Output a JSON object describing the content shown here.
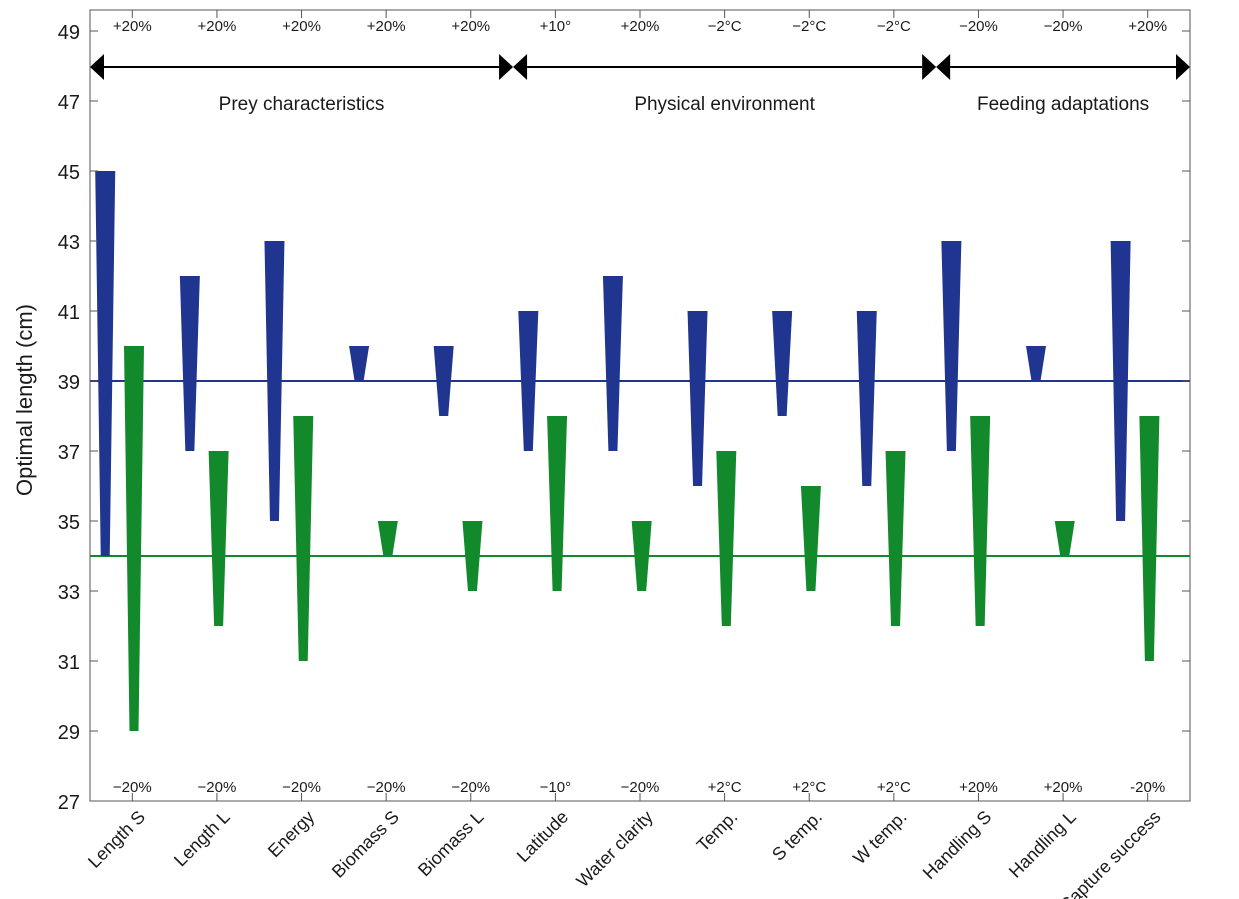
{
  "chart_data": {
    "type": "bar",
    "ylabel": "Optimal length (cm)",
    "ylim": [
      27,
      49.6
    ],
    "yticks": [
      "27",
      "29",
      "31",
      "33",
      "35",
      "37",
      "39",
      "41",
      "43",
      "45",
      "47",
      "49"
    ],
    "categories": [
      "Length S",
      "Length L",
      "Energy",
      "Biomass S",
      "Biomass L",
      "Latitude",
      "Water clarity",
      "Temp.",
      "S temp.",
      "W temp.",
      "Handling S",
      "Handling L",
      "Capture success"
    ],
    "top_labels": [
      "+20%",
      "+20%",
      "+20%",
      "+20%",
      "+20%",
      "+10°",
      "+20%",
      "−2°C",
      "−2°C",
      "−2°C",
      "−20%",
      "−20%",
      "+20%"
    ],
    "bottom_labels": [
      "−20%",
      "−20%",
      "−20%",
      "−20%",
      "−20%",
      "−10°",
      "−20%",
      "+2°C",
      "+2°C",
      "+2°C",
      "+20%",
      "+20%",
      "-20%"
    ],
    "groups": [
      {
        "label": "Prey characteristics",
        "start": 0,
        "end": 4
      },
      {
        "label": "Physical environment",
        "start": 5,
        "end": 9
      },
      {
        "label": "Feeding adaptations",
        "start": 10,
        "end": 12
      }
    ],
    "series": [
      {
        "color": "#1f3590",
        "baseline": 39,
        "high": [
          45,
          42,
          43,
          40,
          40,
          41,
          42,
          41,
          41,
          41,
          43,
          40,
          43
        ],
        "low": [
          34,
          37,
          35,
          39,
          38,
          37,
          37,
          36,
          38,
          36,
          37,
          39,
          35
        ]
      },
      {
        "color": "#128a2c",
        "baseline": 34,
        "high": [
          40,
          37,
          38,
          35,
          35,
          38,
          35,
          37,
          36,
          37,
          38,
          35,
          38
        ],
        "low": [
          29,
          32,
          31,
          34,
          33,
          33,
          33,
          32,
          33,
          32,
          32,
          34,
          31
        ]
      }
    ]
  }
}
